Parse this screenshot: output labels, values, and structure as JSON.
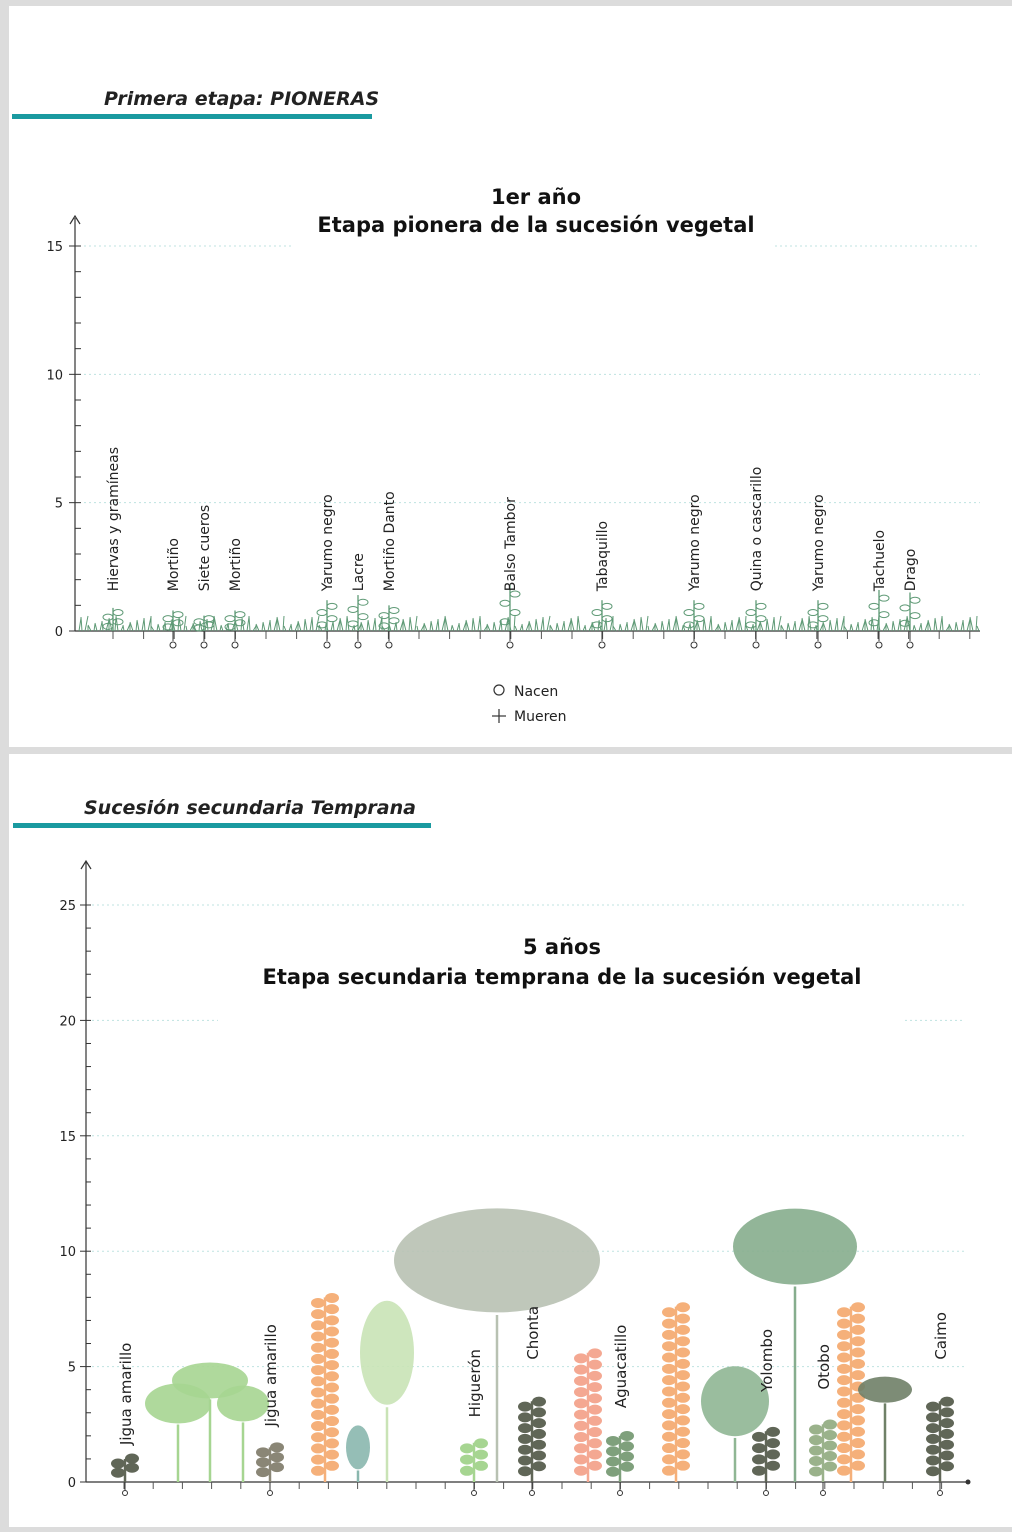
{
  "sections": [
    {
      "heading": "Primera etapa: PIONERAS"
    },
    {
      "heading": "Sucesión secundaria Temprana"
    }
  ],
  "colors": {
    "accent": "#1a9aa0",
    "grass": "#5f9a76",
    "tree_gray": "#b8c1b2",
    "orange": "#f5b07a",
    "light_green": "#a6d591",
    "dark_gray": "#606657"
  },
  "chart_data": [
    {
      "type": "diagram",
      "title": "1er año",
      "subtitle": "Etapa pionera de la sucesión vegetal",
      "ylim": [
        0,
        15
      ],
      "y_ticks": [
        "15",
        "10",
        "5",
        "0"
      ],
      "legend": [
        {
          "symbol": "circle",
          "label": "Nacen"
        },
        {
          "symbol": "plus",
          "label": "Mueren"
        }
      ],
      "species": [
        {
          "name": "Hiervas y gramíneas",
          "marker": false
        },
        {
          "name": "Mortiño",
          "marker": true
        },
        {
          "name": "Siete cueros",
          "marker": true
        },
        {
          "name": "Mortiño",
          "marker": true
        },
        {
          "name": "Yarumo negro",
          "marker": true
        },
        {
          "name": "Lacre",
          "marker": true
        },
        {
          "name": "Mortiño Danto",
          "marker": true
        },
        {
          "name": "Balso Tambor",
          "marker": true
        },
        {
          "name": "Tabaquillo",
          "marker": true
        },
        {
          "name": "Yarumo negro",
          "marker": true
        },
        {
          "name": "Quina o cascarillo",
          "marker": true
        },
        {
          "name": "Yarumo negro",
          "marker": true
        },
        {
          "name": "Tachuelo",
          "marker": true
        },
        {
          "name": "Drago",
          "marker": true
        }
      ]
    },
    {
      "type": "diagram",
      "title": "5 años",
      "subtitle": "Etapa secundaria temprana de la sucesión vegetal",
      "ylim": [
        0,
        25
      ],
      "y_ticks": [
        "25",
        "20",
        "15",
        "10",
        "5",
        "0"
      ],
      "species": [
        {
          "name": "Jigua amarillo",
          "height": 1
        },
        {
          "name": "Jigua amarillo",
          "height": 1.5
        },
        {
          "name": "Higuerón",
          "height": 1.7
        },
        {
          "name": "Chonta",
          "height": 3.5
        },
        {
          "name": "Aguacatillo",
          "height": 2
        },
        {
          "name": "Yolombo",
          "height": 2.2
        },
        {
          "name": "Otobo",
          "height": 2.5
        },
        {
          "name": "Caimo",
          "height": 3.5
        }
      ]
    }
  ]
}
